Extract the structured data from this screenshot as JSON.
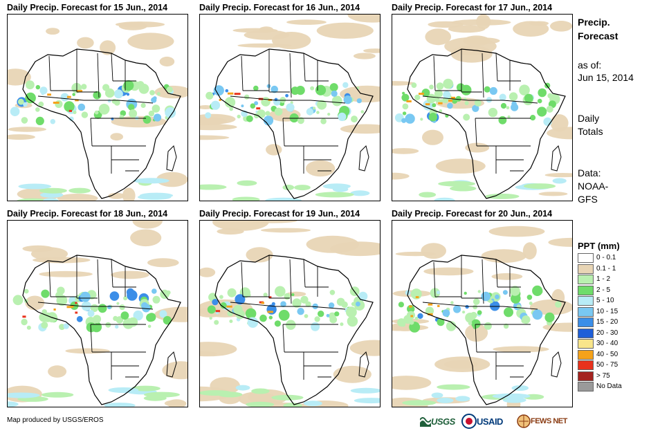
{
  "panels": [
    {
      "title": "Daily Precip. Forecast for 15 Jun., 2014"
    },
    {
      "title": "Daily Precip. Forecast for 16 Jun., 2014"
    },
    {
      "title": "Daily Precip. Forecast for 17 Jun., 2014"
    },
    {
      "title": "Daily Precip. Forecast for 18 Jun., 2014"
    },
    {
      "title": "Daily Precip. Forecast for 19 Jun., 2014"
    },
    {
      "title": "Daily Precip. Forecast for 20 Jun., 2014"
    }
  ],
  "sidebar": {
    "title_line1": "Precip.",
    "title_line2": "Forecast",
    "asof_label": "as of:",
    "asof_date": "Jun 15, 2014",
    "totals_line1": "Daily",
    "totals_line2": "Totals",
    "data_label": "Data:",
    "data_line1": "NOAA-",
    "data_line2": "GFS"
  },
  "legend": {
    "title": "PPT (mm)",
    "items": [
      {
        "label": "0 - 0.1",
        "color": "#ffffff"
      },
      {
        "label": "0.1 - 1",
        "color": "#e8d5b5"
      },
      {
        "label": "1 - 2",
        "color": "#b9f0b0"
      },
      {
        "label": "2 - 5",
        "color": "#6fdc6a"
      },
      {
        "label": "5 - 10",
        "color": "#b8ecf6"
      },
      {
        "label": "10 - 15",
        "color": "#79c8f2"
      },
      {
        "label": "15 - 20",
        "color": "#3b8ee8"
      },
      {
        "label": "20 - 30",
        "color": "#1f5fd8"
      },
      {
        "label": "30 - 40",
        "color": "#f8e58a"
      },
      {
        "label": "40 - 50",
        "color": "#f5a21a"
      },
      {
        "label": "50 - 75",
        "color": "#e8321c"
      },
      {
        "label": "> 75",
        "color": "#a4231f"
      },
      {
        "label": "No Data",
        "color": "#9a9a9a"
      }
    ]
  },
  "footer": {
    "credit": "Map produced by USGS/EROS",
    "logos": [
      "USGS",
      "USAID",
      "FEWS NET"
    ]
  }
}
